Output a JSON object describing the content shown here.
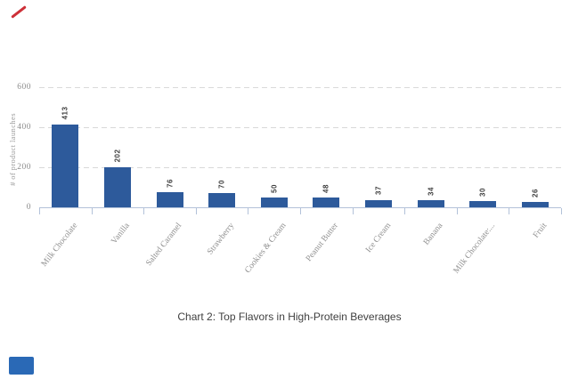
{
  "page": {
    "background": "#ffffff",
    "decorations": {
      "top_left_stroke_color": "#cd3038",
      "bottom_left_rect_color": "#2a69b6"
    }
  },
  "chart_data": {
    "type": "bar",
    "categories": [
      "Milk Chocolate",
      "Vanilla",
      "Salted Caramel",
      "Strawberry",
      "Cookies & Cream",
      "Peanut Butter",
      "Ice Cream",
      "Banana",
      "Milk Chocolate:...",
      "Fruit"
    ],
    "values": [
      413,
      202,
      76,
      70,
      50,
      48,
      37,
      34,
      30,
      26
    ],
    "value_labels": [
      "413",
      "202",
      "76",
      "70",
      "50",
      "48",
      "37",
      "34",
      "30",
      "26"
    ],
    "caption": "Chart 2: Top Flavors in High-Protein Beverages",
    "ylabel": "# of product launches",
    "xlabel": "",
    "yticks": [
      0,
      200,
      400,
      600
    ],
    "ylim": [
      0,
      600
    ],
    "grid": "horizontal-dashed",
    "legend": "none",
    "bar_color": "#2d5a9b",
    "gridline_color": "#d9d9d9",
    "axis_color": "#b3c2d9",
    "tick_label_color": "#8c8c8c",
    "category_label_color": "#8f8f8f",
    "ylabel_color": "#9a9a9a",
    "value_label_color": "#3d3d3d",
    "caption_color": "#3f3f3f"
  }
}
